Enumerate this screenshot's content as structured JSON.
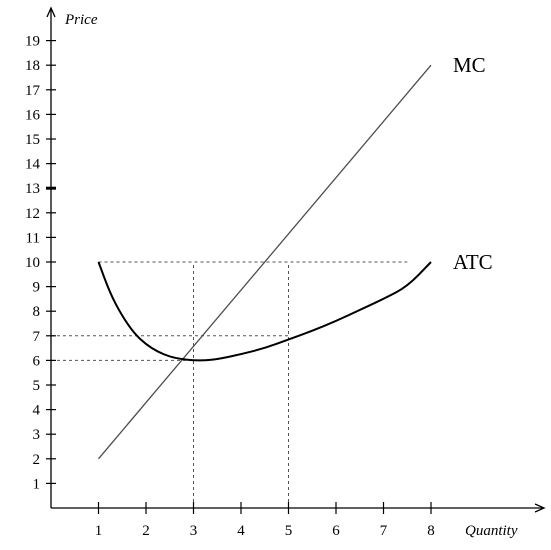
{
  "chart_data": {
    "type": "line",
    "title": "",
    "xlabel": "Quantity",
    "ylabel": "Price",
    "xlim": [
      0,
      9
    ],
    "ylim": [
      0,
      19.5
    ],
    "x_ticks": [
      1,
      2,
      3,
      4,
      5,
      6,
      7,
      8
    ],
    "y_ticks": [
      1,
      2,
      3,
      4,
      5,
      6,
      7,
      8,
      9,
      10,
      11,
      12,
      13,
      14,
      15,
      16,
      17,
      18,
      19
    ],
    "highlighted_y_tick": 13,
    "grid": false,
    "series": [
      {
        "name": "MC",
        "style": "line",
        "color": "#4d4d4d",
        "x": [
          1,
          8
        ],
        "y": [
          2,
          18
        ]
      },
      {
        "name": "ATC",
        "style": "curve",
        "color": "#000000",
        "x": [
          1,
          1.25,
          1.5,
          1.75,
          2,
          2.25,
          2.5,
          2.75,
          3,
          3.25,
          3.5,
          4,
          4.5,
          5,
          5.5,
          6,
          6.5,
          7,
          7.5,
          8
        ],
        "y": [
          10,
          8.7,
          7.8,
          7.1,
          6.65,
          6.35,
          6.15,
          6.05,
          6.0,
          6.0,
          6.05,
          6.25,
          6.5,
          6.85,
          7.2,
          7.6,
          8.05,
          8.5,
          9.0,
          10.0
        ]
      }
    ],
    "reference_lines": [
      {
        "orient": "horizontal",
        "y": 10,
        "x_from": 1,
        "x_to": 7.5
      },
      {
        "orient": "horizontal",
        "y": 7,
        "x_from": 0,
        "x_to": 5
      },
      {
        "orient": "horizontal",
        "y": 6,
        "x_from": 0,
        "x_to": 3
      },
      {
        "orient": "vertical",
        "x": 3,
        "y_from": 0,
        "y_to": 10
      },
      {
        "orient": "vertical",
        "x": 5,
        "y_from": 0,
        "y_to": 10
      }
    ]
  }
}
